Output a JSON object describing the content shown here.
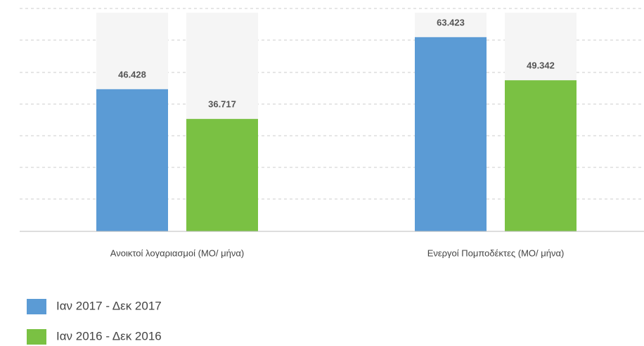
{
  "chart_data": {
    "type": "bar",
    "categories": [
      "Ανοικτοί λογαριασμοί (ΜΟ/ μήνα)",
      "Ενεργοί Πομποδέκτες (ΜΟ/ μήνα)"
    ],
    "series": [
      {
        "name": "Ιαν 2017 - Δεκ 2017",
        "color": "#5b9bd5",
        "values": [
          46428,
          63423
        ],
        "value_labels": [
          "46.428",
          "63.423"
        ]
      },
      {
        "name": "Ιαν 2016 - Δεκ 2016",
        "color": "#7ac143",
        "values": [
          36717,
          49342
        ],
        "value_labels": [
          "36.717",
          "49.342"
        ]
      }
    ],
    "ylim": [
      0,
      72800
    ],
    "grid": true
  }
}
